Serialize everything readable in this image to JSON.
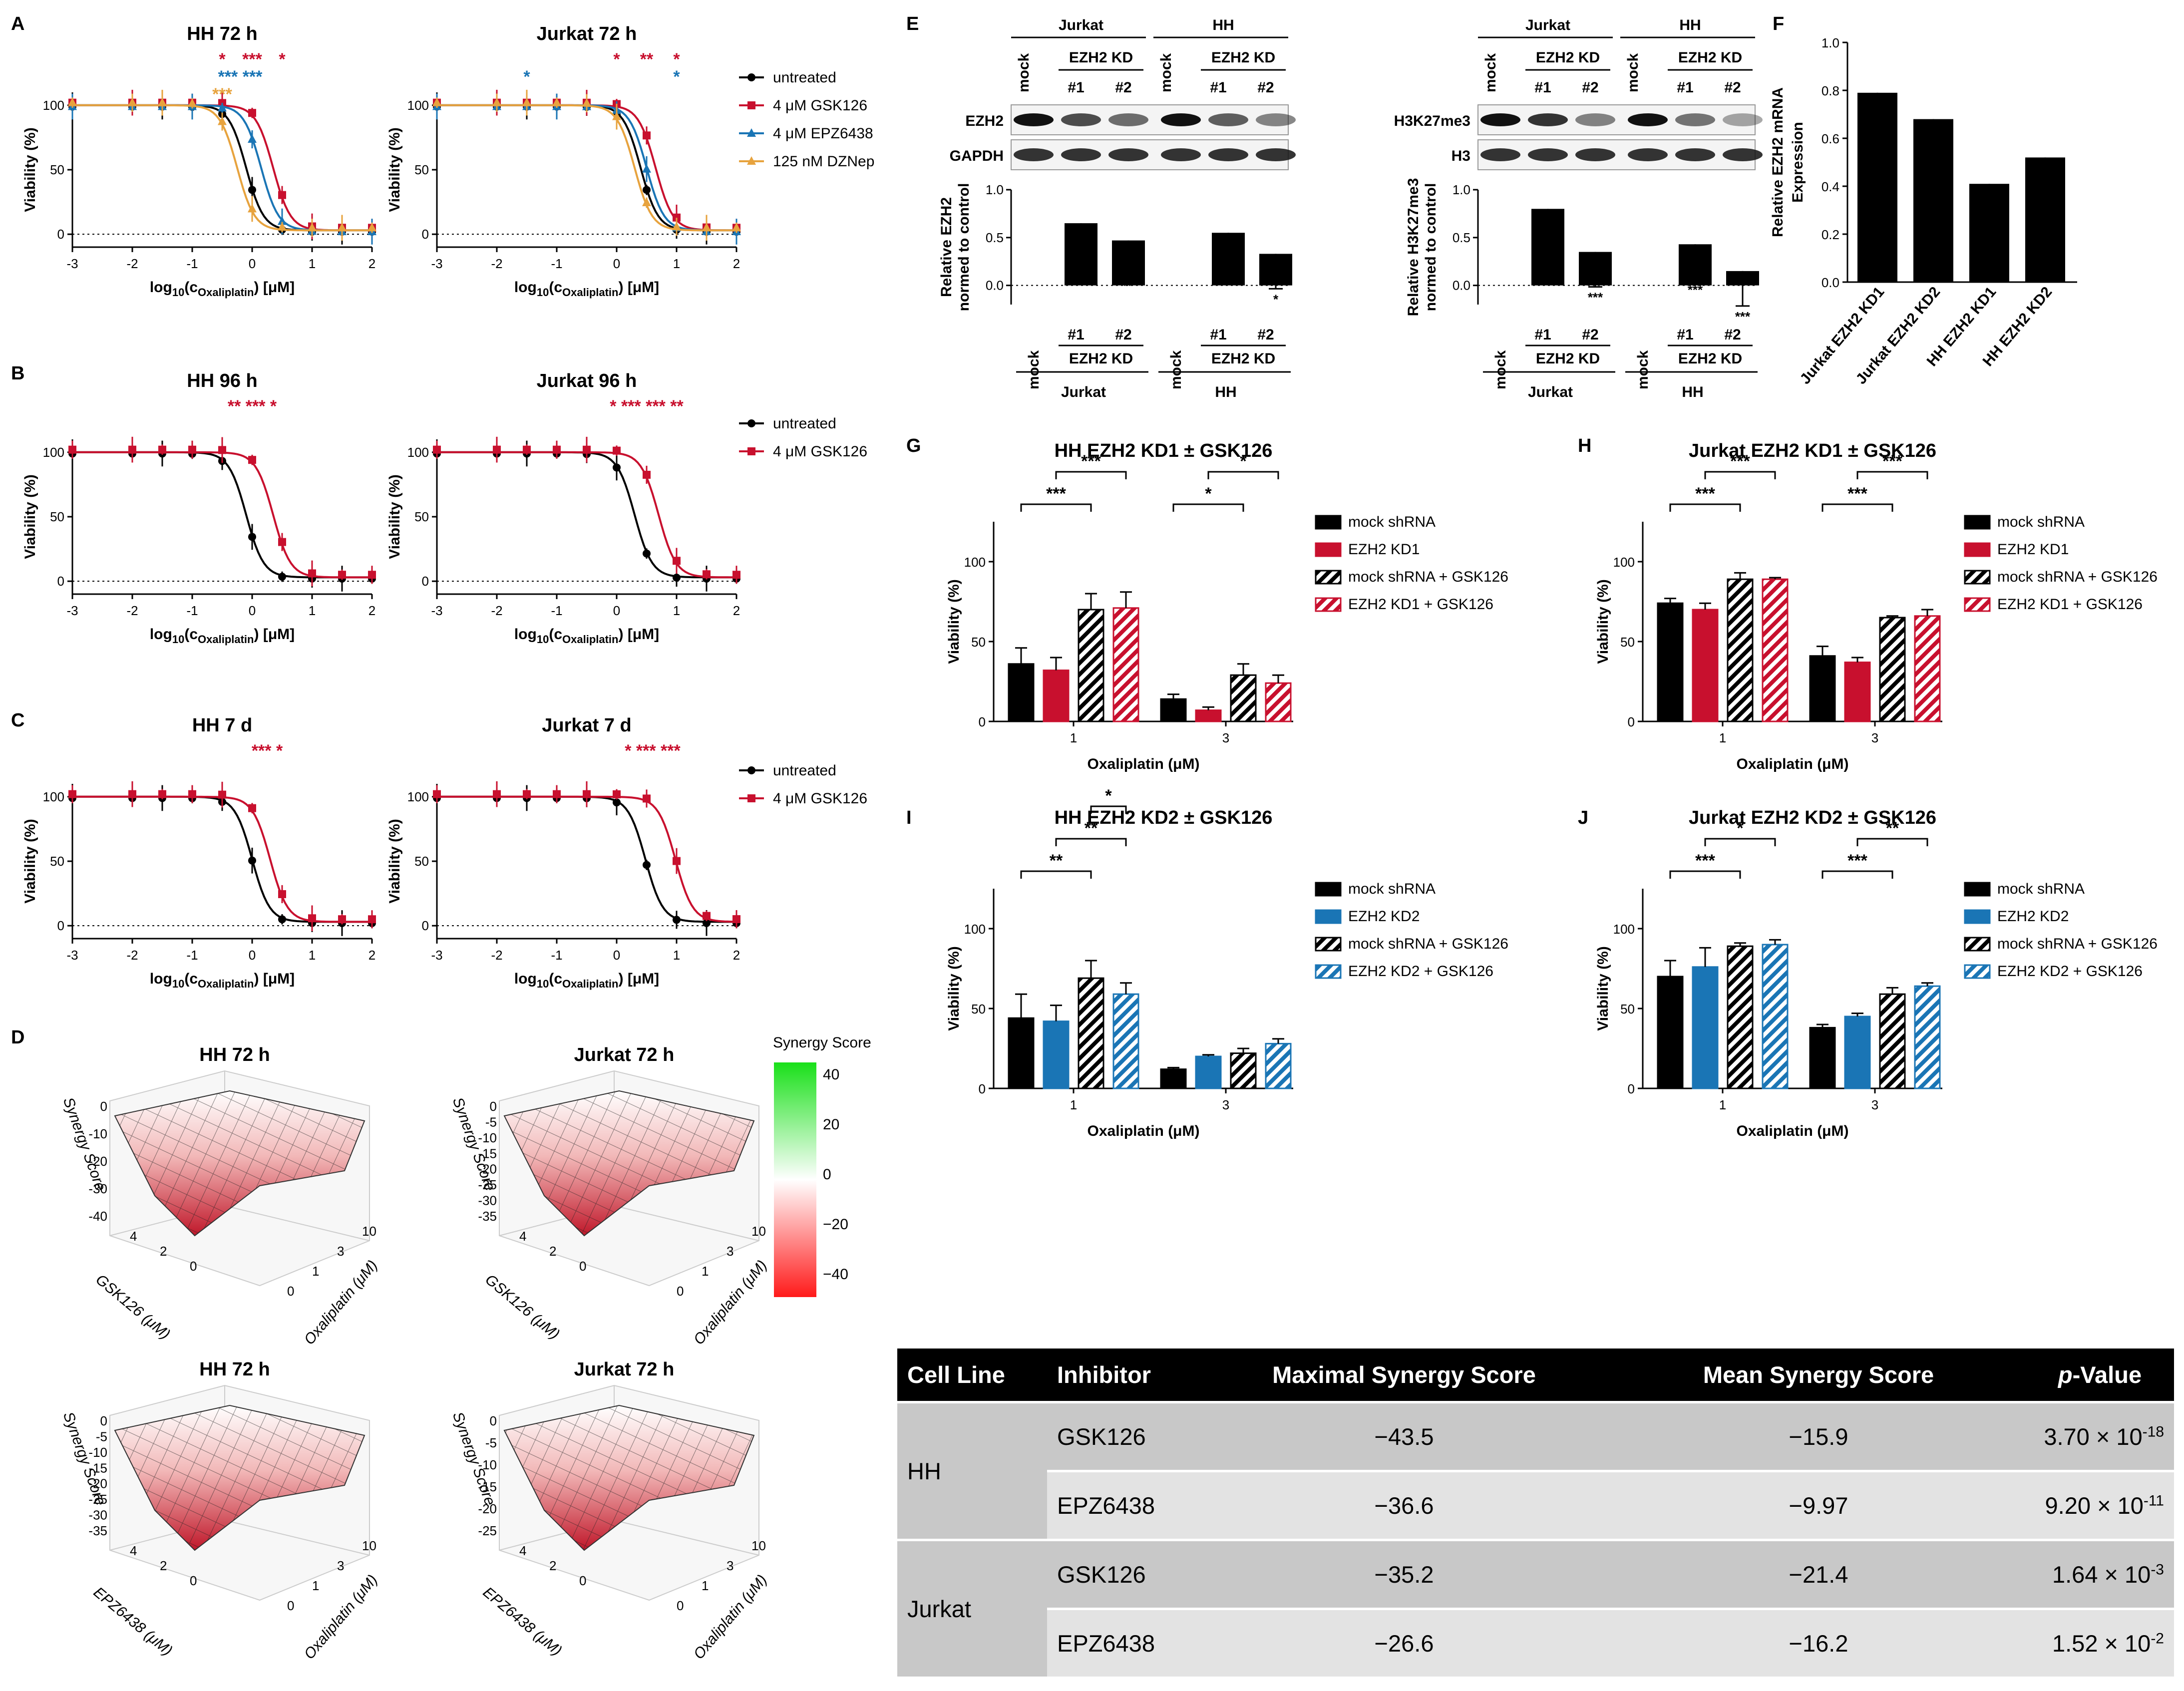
{
  "colors": {
    "black": "#000000",
    "red": "#c8102e",
    "blue": "#1a75b5",
    "orange": "#e7a33e",
    "green": "#19e019"
  },
  "panels": {
    "A": "A",
    "B": "B",
    "C": "C",
    "D": "D",
    "E": "E",
    "F": "F",
    "G": "G",
    "H": "H",
    "I": "I",
    "J": "J"
  },
  "curves": {
    "ylabel": "Viability (%)",
    "xlabel_pre": "log",
    "xlabel_sub10": "10",
    "xlabel_c": "(c",
    "xlabel_sub": "Oxaliplatin",
    "xlabel_post": ") [μM]",
    "xticks": [
      "-3",
      "-2",
      "-1",
      "0",
      "1",
      "2"
    ],
    "yticks": [
      "0",
      "50",
      "100"
    ],
    "legend_A": [
      "untreated",
      "4 μM GSK126",
      "4 μM EPZ6438",
      "125 nM DZNep"
    ],
    "legend_BC": [
      "untreated",
      "4 μM GSK126"
    ],
    "panels": [
      {
        "title": "HH 72 h",
        "stars": [
          {
            "t": "*",
            "c": "red",
            "x": -0.5
          },
          {
            "t": "***",
            "c": "red",
            "x": 0
          },
          {
            "t": "*",
            "c": "red",
            "x": 0.5
          },
          {
            "t": "*** ***",
            "c": "blue",
            "x": -0.2
          },
          {
            "t": "***",
            "c": "orange",
            "x": -0.5
          }
        ],
        "series": [
          {
            "c": "black",
            "ic50": -0.1
          },
          {
            "c": "red",
            "ic50": 0.35
          },
          {
            "c": "blue",
            "ic50": 0.15
          },
          {
            "c": "orange",
            "ic50": -0.25
          }
        ]
      },
      {
        "title": "Jurkat 72 h",
        "stars": [
          {
            "t": "*",
            "c": "red",
            "x": 0
          },
          {
            "t": "**",
            "c": "red",
            "x": 0.5
          },
          {
            "t": "*",
            "c": "red",
            "x": 1
          },
          {
            "t": "*",
            "c": "blue",
            "x": -1.5
          },
          {
            "t": "*",
            "c": "blue",
            "x": 1
          }
        ],
        "series": [
          {
            "c": "black",
            "ic50": 0.4
          },
          {
            "c": "red",
            "ic50": 0.65
          },
          {
            "c": "blue",
            "ic50": 0.5
          },
          {
            "c": "orange",
            "ic50": 0.3
          }
        ]
      },
      {
        "title": "HH 96 h",
        "stars": [
          {
            "t": "** *** *",
            "c": "red",
            "x": 0
          }
        ],
        "series": [
          {
            "c": "black",
            "ic50": -0.1
          },
          {
            "c": "red",
            "ic50": 0.35
          }
        ]
      },
      {
        "title": "Jurkat 96 h",
        "stars": [
          {
            "t": "* *** *** **",
            "c": "red",
            "x": 0.5
          }
        ],
        "series": [
          {
            "c": "black",
            "ic50": 0.3
          },
          {
            "c": "red",
            "ic50": 0.7
          }
        ]
      },
      {
        "title": "HH 7 d",
        "stars": [
          {
            "t": "*** *",
            "c": "red",
            "x": 0.25
          }
        ],
        "series": [
          {
            "c": "black",
            "ic50": 0.0
          },
          {
            "c": "red",
            "ic50": 0.3
          }
        ]
      },
      {
        "title": "Jurkat 7 d",
        "stars": [
          {
            "t": "* *** ***",
            "c": "red",
            "x": 0.6
          }
        ],
        "series": [
          {
            "c": "black",
            "ic50": 0.48
          },
          {
            "c": "red",
            "ic50": 0.98
          }
        ]
      }
    ]
  },
  "synergy": {
    "titles": [
      "HH 72 h",
      "Jurkat 72 h",
      "HH 72 h",
      "Jurkat 72 h"
    ],
    "zlabel": "Synergy Score",
    "xlabels": [
      "GSK126 (μM)",
      "GSK126 (μM)",
      "EPZ6438 (μM)",
      "EPZ6438 (μM)"
    ],
    "ylabel": "Oxaliplatin (μM)",
    "xticks": [
      "0",
      "2",
      "4"
    ],
    "yticks": [
      "0",
      "1",
      "3",
      "10"
    ],
    "zticks_1": [
      "0",
      "-10",
      "-20",
      "-30",
      "-40"
    ],
    "zticks_2": [
      "0",
      "-5",
      "-10",
      "-15",
      "-20",
      "-25",
      "-30",
      "-35"
    ],
    "zticks_3": [
      "0",
      "-5",
      "-10",
      "-15",
      "-20",
      "-25",
      "-30",
      "-35"
    ],
    "zticks_4": [
      "0",
      "-5",
      "-10",
      "-15",
      "-20",
      "-25"
    ],
    "colorbar_title": "Synergy Score",
    "colorbar_ticks": [
      "40",
      "20",
      "0",
      "−20",
      "−40"
    ]
  },
  "western": {
    "left": {
      "groups": [
        "Jurkat",
        "HH"
      ],
      "kd": "EZH2 KD",
      "mock": "mock",
      "n1": "#1",
      "n2": "#2",
      "bands": [
        "EZH2",
        "GAPDH"
      ],
      "ylabel1": "Relative EZH2",
      "ylabel2": "normed to control",
      "yticks": [
        "0.0",
        "0.5",
        "1.0"
      ],
      "values": [
        1.0,
        0.65,
        0.47,
        1.0,
        0.55,
        0.33
      ],
      "stars": [
        "",
        "*",
        "**",
        "",
        "*",
        "*"
      ]
    },
    "right": {
      "groups": [
        "Jurkat",
        "HH"
      ],
      "kd": "EZH2 KD",
      "mock": "mock",
      "n1": "#1",
      "n2": "#2",
      "bands": [
        "H3K27me3",
        "H3"
      ],
      "ylabel1": "Relative H3K27me3",
      "ylabel2": "normed to control",
      "yticks": [
        "0.0",
        "0.5",
        "1.0"
      ],
      "values": [
        1.0,
        0.8,
        0.35,
        1.0,
        0.43,
        0.15
      ],
      "stars": [
        "",
        "",
        "***",
        "",
        "***",
        "***"
      ]
    }
  },
  "panelF": {
    "ylabel1": "Relative EZH2 mRNA",
    "ylabel2": "Expression",
    "yticks": [
      "0.0",
      "0.2",
      "0.4",
      "0.6",
      "0.8",
      "1.0"
    ],
    "categories": [
      "Jurkat EZH2 KD1",
      "Jurkat EZH2 KD2",
      "HH EZH2 KD1",
      "HH EZH2 KD2"
    ],
    "values": [
      0.79,
      0.68,
      0.41,
      0.52
    ],
    "errors": [
      0.08,
      0.09,
      0.02,
      0.09
    ],
    "stars": [
      "",
      "*",
      "***",
      "*"
    ]
  },
  "bars": {
    "ylabel": "Viability (%)",
    "xlabel": "Oxaliplatin (μM)",
    "xticks": [
      "1",
      "3"
    ],
    "yticks": [
      "0",
      "50",
      "100"
    ],
    "panels": [
      {
        "title": "HH EZH2 KD1 ± GSK126",
        "kdcolor": "red",
        "legend": [
          "mock shRNA",
          "EZH2 KD1",
          "mock shRNA + GSK126",
          "EZH2 KD1 + GSK126"
        ],
        "values": [
          [
            36,
            32,
            70,
            71
          ],
          [
            14,
            7,
            29,
            24
          ]
        ],
        "errors": [
          [
            10,
            8,
            10,
            10
          ],
          [
            3,
            2,
            7,
            5
          ]
        ],
        "sig": [
          {
            "g": 0,
            "a": 0,
            "b": 2,
            "lvl": 1,
            "t": "***"
          },
          {
            "g": 0,
            "a": 1,
            "b": 3,
            "lvl": 2,
            "t": "***"
          },
          {
            "g": 1,
            "a": 0,
            "b": 2,
            "lvl": 1,
            "t": "*"
          },
          {
            "g": 1,
            "a": 1,
            "b": 3,
            "lvl": 2,
            "t": "*"
          }
        ]
      },
      {
        "title": "Jurkat EZH2 KD1 ± GSK126",
        "kdcolor": "red",
        "legend": [
          "mock shRNA",
          "EZH2 KD1",
          "mock shRNA + GSK126",
          "EZH2 KD1 + GSK126"
        ],
        "values": [
          [
            74,
            70,
            89,
            89
          ],
          [
            41,
            37,
            65,
            66
          ]
        ],
        "errors": [
          [
            3,
            4,
            4,
            1
          ],
          [
            6,
            3,
            1,
            4
          ]
        ],
        "sig": [
          {
            "g": 0,
            "a": 0,
            "b": 2,
            "lvl": 1,
            "t": "***"
          },
          {
            "g": 0,
            "a": 1,
            "b": 3,
            "lvl": 2,
            "t": "***"
          },
          {
            "g": 1,
            "a": 0,
            "b": 2,
            "lvl": 1,
            "t": "***"
          },
          {
            "g": 1,
            "a": 1,
            "b": 3,
            "lvl": 2,
            "t": "***"
          }
        ]
      },
      {
        "title": "HH EZH2 KD2 ± GSK126",
        "kdcolor": "blue",
        "legend": [
          "mock shRNA",
          "EZH2 KD2",
          "mock shRNA + GSK126",
          "EZH2 KD2 + GSK126"
        ],
        "values": [
          [
            44,
            42,
            69,
            59
          ],
          [
            12,
            20,
            22,
            28
          ]
        ],
        "errors": [
          [
            15,
            10,
            11,
            7
          ],
          [
            1,
            1,
            3,
            3
          ]
        ],
        "sig": [
          {
            "g": 0,
            "a": 0,
            "b": 2,
            "lvl": 1,
            "t": "**"
          },
          {
            "g": 0,
            "a": 1,
            "b": 3,
            "lvl": 2,
            "t": "**"
          },
          {
            "g": 0,
            "a": 2,
            "b": 3,
            "lvl": 3,
            "t": "*"
          }
        ]
      },
      {
        "title": "Jurkat EZH2 KD2 ± GSK126",
        "kdcolor": "blue",
        "legend": [
          "mock shRNA",
          "EZH2 KD2",
          "mock shRNA + GSK126",
          "EZH2 KD2 + GSK126"
        ],
        "values": [
          [
            70,
            76,
            89,
            90
          ],
          [
            38,
            45,
            59,
            64
          ]
        ],
        "errors": [
          [
            10,
            12,
            2,
            3
          ],
          [
            2,
            2,
            4,
            2
          ]
        ],
        "sig": [
          {
            "g": 0,
            "a": 0,
            "b": 2,
            "lvl": 1,
            "t": "***"
          },
          {
            "g": 0,
            "a": 1,
            "b": 3,
            "lvl": 2,
            "t": "*"
          },
          {
            "g": 1,
            "a": 0,
            "b": 2,
            "lvl": 1,
            "t": "***"
          },
          {
            "g": 1,
            "a": 1,
            "b": 3,
            "lvl": 2,
            "t": "**"
          }
        ]
      }
    ]
  },
  "table": {
    "headers": {
      "cell_line": "Cell Line",
      "inhibitor": "Inhibitor",
      "max": "Maximal Synergy Score",
      "mean": "Mean Synergy Score",
      "p_pre": "p",
      "p_post": "-Value"
    },
    "rows": [
      {
        "cell_line": "HH",
        "inhibitor": "GSK126",
        "max": "−43.5",
        "mean": "−15.9",
        "p": "3.70 × 10",
        "exp": "-18"
      },
      {
        "cell_line": "",
        "inhibitor": "EPZ6438",
        "max": "−36.6",
        "mean": "−9.97",
        "p": "9.20 × 10",
        "exp": "-11"
      },
      {
        "cell_line": "Jurkat",
        "inhibitor": "GSK126",
        "max": "−35.2",
        "mean": "−21.4",
        "p": "1.64 × 10",
        "exp": "-3"
      },
      {
        "cell_line": "",
        "inhibitor": "EPZ6438",
        "max": "−26.6",
        "mean": "−16.2",
        "p": "1.52 × 10",
        "exp": "-2"
      }
    ]
  }
}
